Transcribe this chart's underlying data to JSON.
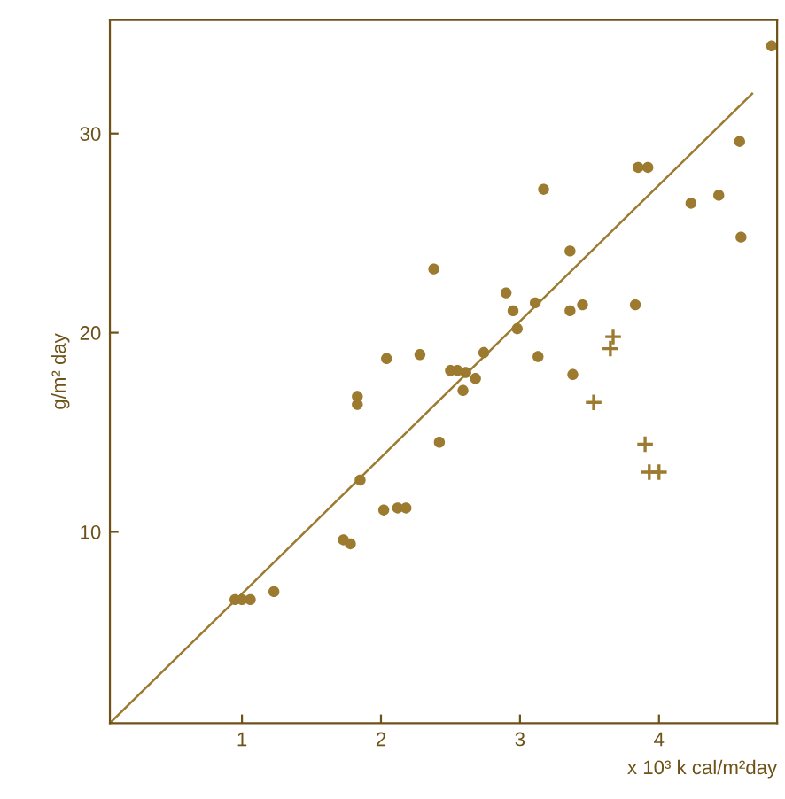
{
  "chart_data": {
    "type": "scatter",
    "xlabel": "x 10³ k cal/m²day",
    "ylabel": "g/m² day",
    "xlim": [
      0.05,
      4.85
    ],
    "ylim": [
      0.4,
      35.7
    ],
    "xticks": [
      1,
      2,
      3,
      4
    ],
    "yticks": [
      10,
      20,
      30
    ],
    "grid": false,
    "legend": false,
    "series": [
      {
        "marker": "circle",
        "color": "#9c7a30",
        "x": [
          4.81,
          4.58,
          3.85,
          3.92,
          3.17,
          4.23,
          4.43,
          4.59,
          3.36,
          2.38,
          2.9,
          2.95,
          3.11,
          3.36,
          3.45,
          3.83,
          2.98,
          3.13,
          3.38,
          2.74,
          2.28,
          2.04,
          2.5,
          2.55,
          2.61,
          2.68,
          2.59,
          1.83,
          1.83,
          2.42,
          1.85,
          2.02,
          2.12,
          2.18,
          1.73,
          1.78,
          1.23,
          0.95,
          1.0,
          1.06
        ],
        "values": [
          34.4,
          29.6,
          28.3,
          28.3,
          27.2,
          26.5,
          26.9,
          24.8,
          24.1,
          23.2,
          22.0,
          21.1,
          21.5,
          21.1,
          21.4,
          21.4,
          20.2,
          18.8,
          17.9,
          19.0,
          18.9,
          18.7,
          18.1,
          18.1,
          18.0,
          17.7,
          17.1,
          16.8,
          16.4,
          14.5,
          12.6,
          11.1,
          11.2,
          11.2,
          9.6,
          9.4,
          7.0,
          6.6,
          6.6,
          6.6
        ]
      },
      {
        "type": "scatter",
        "marker": "cross",
        "color": "#9c7a30",
        "x": [
          3.67,
          3.65,
          3.53,
          3.9,
          3.93,
          4.0
        ],
        "values": [
          19.8,
          19.2,
          16.5,
          14.4,
          13.0,
          13.0
        ]
      },
      {
        "type": "line",
        "marker": "none",
        "line_style": "solid",
        "color": "#9c7a30",
        "x": [
          0.05,
          4.67
        ],
        "values": [
          0.4,
          32.0
        ]
      }
    ]
  }
}
